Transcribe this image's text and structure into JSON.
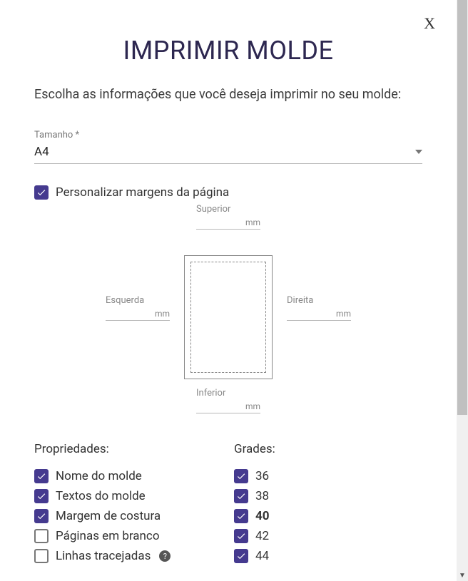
{
  "close_label": "X",
  "title": "IMPRIMIR MOLDE",
  "subtitle": "Escolha as informações que você deseja imprimir no seu molde:",
  "size": {
    "label": "Tamanho *",
    "value": "A4"
  },
  "customize_margins": {
    "label": "Personalizar margens da página",
    "checked": true
  },
  "margins": {
    "unit": "mm",
    "sides": {
      "superior": {
        "label": "Superior",
        "value": ""
      },
      "inferior": {
        "label": "Inferior",
        "value": ""
      },
      "esquerda": {
        "label": "Esquerda",
        "value": ""
      },
      "direita": {
        "label": "Direita",
        "value": ""
      }
    }
  },
  "properties": {
    "header": "Propriedades:",
    "items": [
      {
        "label": "Nome do molde",
        "checked": true,
        "help": false
      },
      {
        "label": "Textos do molde",
        "checked": true,
        "help": false
      },
      {
        "label": "Margem de costura",
        "checked": true,
        "help": false
      },
      {
        "label": "Páginas em branco",
        "checked": false,
        "help": false
      },
      {
        "label": "Linhas tracejadas",
        "checked": false,
        "help": true
      }
    ]
  },
  "grades": {
    "header": "Grades:",
    "items": [
      {
        "label": "36",
        "checked": true,
        "bold": false
      },
      {
        "label": "38",
        "checked": true,
        "bold": false
      },
      {
        "label": "40",
        "checked": true,
        "bold": true
      },
      {
        "label": "42",
        "checked": true,
        "bold": false
      },
      {
        "label": "44",
        "checked": true,
        "bold": false
      }
    ]
  },
  "colors": {
    "accent": "#453a8f",
    "title": "#2d2750",
    "text": "#333333",
    "muted": "#888888",
    "border": "#b8b8b8"
  }
}
